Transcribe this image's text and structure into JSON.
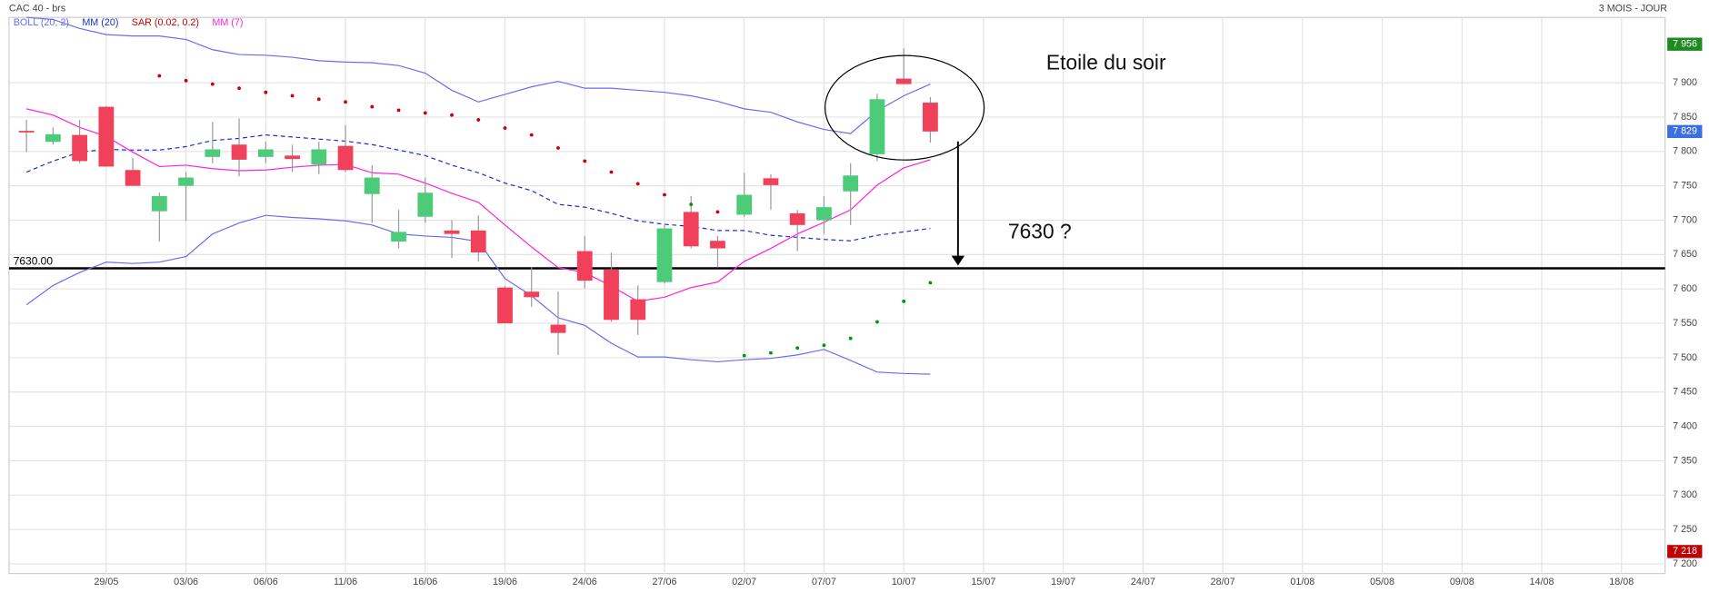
{
  "chart_data": {
    "type": "candlestick",
    "title": "CAC 40 - brs",
    "subtitle": "3 MOIS - JOUR",
    "categories": [
      null,
      null,
      null,
      "29/05",
      null,
      null,
      "03/06",
      null,
      null,
      "06/06",
      null,
      null,
      "11/06",
      null,
      null,
      "16/06",
      null,
      null,
      "19/06",
      null,
      null,
      "24/06",
      null,
      null,
      "27/06",
      null,
      null,
      "02/07",
      null,
      null,
      "07/07",
      null,
      null,
      "10/07",
      null,
      null,
      "15/07",
      null,
      null,
      "19/07",
      null,
      null,
      "24/07",
      null,
      null,
      "28/07",
      null,
      null,
      "01/08",
      null,
      null,
      "05/08",
      null,
      null,
      "09/08",
      null,
      null,
      "14/08",
      null,
      null,
      "18/08",
      null
    ],
    "open": [
      7830,
      7814,
      7824,
      7865,
      7773,
      7713,
      7750,
      7792,
      7810,
      7792,
      7794,
      7781,
      7808,
      7738,
      7669,
      7705,
      7685,
      7685,
      7602,
      7596,
      7548,
      7655,
      7628,
      7585,
      7610,
      7712,
      7670,
      7708,
      7761,
      7710,
      7700,
      7742,
      7796,
      7906,
      7871,
      null,
      null,
      null,
      null,
      null,
      null,
      null,
      null,
      null,
      null,
      null,
      null,
      null,
      null,
      null,
      null,
      null,
      null,
      null,
      null,
      null,
      null,
      null,
      null,
      null,
      null,
      null
    ],
    "high": [
      7846,
      7835,
      7846,
      7866,
      7791,
      7740,
      7770,
      7843,
      7848,
      7814,
      7810,
      7814,
      7838,
      7780,
      7715,
      7762,
      7700,
      7707,
      7604,
      7632,
      7596,
      7677,
      7653,
      7605,
      7693,
      7735,
      7677,
      7769,
      7767,
      7715,
      7735,
      7783,
      7884,
      7950,
      7879,
      null,
      null,
      null,
      null,
      null,
      null,
      null,
      null,
      null,
      null,
      null,
      null,
      null,
      null,
      null,
      null,
      null,
      null,
      null,
      null,
      null,
      null,
      null,
      null,
      null,
      null,
      null
    ],
    "low": [
      7799,
      7810,
      7783,
      7778,
      7750,
      7669,
      7699,
      7783,
      7764,
      7783,
      7770,
      7767,
      7770,
      7696,
      7659,
      7696,
      7645,
      7640,
      7550,
      7574,
      7504,
      7601,
      7552,
      7533,
      7608,
      7659,
      7631,
      7705,
      7715,
      7655,
      7680,
      7693,
      7786,
      7898,
      7813,
      null,
      null,
      null,
      null,
      null,
      null,
      null,
      null,
      null,
      null,
      null,
      null,
      null,
      null,
      null,
      null,
      null,
      null,
      null,
      null,
      null,
      null,
      null,
      null,
      null,
      null,
      null
    ],
    "close": [
      7828,
      7825,
      7786,
      7778,
      7750,
      7735,
      7762,
      7803,
      7788,
      7803,
      7789,
      7803,
      7773,
      7762,
      7683,
      7740,
      7680,
      7653,
      7550,
      7588,
      7536,
      7612,
      7555,
      7555,
      7688,
      7662,
      7659,
      7737,
      7751,
      7693,
      7719,
      7765,
      7876,
      7898,
      7829,
      null,
      null,
      null,
      null,
      null,
      null,
      null,
      null,
      null,
      null,
      null,
      null,
      null,
      null,
      null,
      null,
      null,
      null,
      null,
      null,
      null,
      null,
      null,
      null,
      null,
      null,
      null
    ],
    "up_color": "#4ccc78",
    "down_color": "#f0405a",
    "series": [
      {
        "name": "BOLL (20, 2)",
        "color": "#6a6cf0",
        "upper": [
          7995,
          7992,
          7979,
          7970,
          7968,
          7968,
          7963,
          7948,
          7941,
          7940,
          7937,
          7932,
          7930,
          7929,
          7925,
          7914,
          7889,
          7872,
          7883,
          7894,
          7902,
          7892,
          7892,
          7889,
          7886,
          7881,
          7873,
          7862,
          7857,
          7843,
          7832,
          7826,
          7859,
          7881,
          7898,
          null,
          null,
          null,
          null,
          null,
          null,
          null,
          null,
          null,
          null,
          null,
          null,
          null,
          null,
          null,
          null,
          null,
          null,
          null,
          null,
          null,
          null,
          null,
          null,
          null,
          null,
          null
        ],
        "lower": [
          7577,
          7605,
          7624,
          7639,
          7637,
          7639,
          7647,
          7680,
          7696,
          7707,
          7704,
          7702,
          7699,
          7693,
          7680,
          7677,
          7675,
          7669,
          7615,
          7590,
          7558,
          7547,
          7521,
          7501,
          7501,
          7497,
          7494,
          7497,
          7499,
          7504,
          7512,
          7496,
          7479,
          7477,
          7476,
          null,
          null,
          null,
          null,
          null,
          null,
          null,
          null,
          null,
          null,
          null,
          null,
          null,
          null,
          null,
          null,
          null,
          null,
          null,
          null,
          null,
          null,
          null,
          null,
          null,
          null,
          null
        ]
      },
      {
        "name": "MM (20)",
        "color": "#1a2fc8",
        "dashed": true,
        "values": [
          7770,
          7786,
          7799,
          7803,
          7802,
          7802,
          7807,
          7816,
          7819,
          7824,
          7821,
          7818,
          7815,
          7810,
          7802,
          7794,
          7780,
          7769,
          7754,
          7743,
          7723,
          7719,
          7710,
          7699,
          7694,
          7691,
          7685,
          7685,
          7678,
          7675,
          7672,
          7670,
          7678,
          7683,
          7688,
          null,
          null,
          null,
          null,
          null,
          null,
          null,
          null,
          null,
          null,
          null,
          null,
          null,
          null,
          null,
          null,
          null,
          null,
          null,
          null,
          null,
          null,
          null,
          null,
          null,
          null,
          null
        ]
      },
      {
        "name": "SAR (0.02, 0.2)",
        "color": "#cc0000",
        "color_below": "#00960a",
        "dots": true,
        "values": [
          null,
          null,
          null,
          null,
          null,
          7910,
          7903,
          7898,
          7892,
          7886,
          7881,
          7876,
          7872,
          7865,
          7860,
          7856,
          7853,
          7846,
          7834,
          7824,
          7805,
          7786,
          7770,
          7753,
          7737,
          7723,
          7712,
          7503,
          7507,
          7514,
          7518,
          7528,
          7552,
          7582,
          7609,
          null,
          null,
          null,
          null,
          null,
          null,
          null,
          null,
          null,
          null,
          null,
          null,
          null,
          null,
          null,
          null,
          null,
          null,
          null,
          null,
          null,
          null,
          null,
          null,
          null,
          null,
          null
        ]
      },
      {
        "name": "MM (7)",
        "color": "#ff22dd",
        "values": [
          7862,
          7853,
          7835,
          7822,
          7799,
          7778,
          7780,
          7775,
          7772,
          7773,
          7777,
          7780,
          7781,
          7769,
          7767,
          7754,
          7739,
          7726,
          7693,
          7661,
          7631,
          7624,
          7604,
          7582,
          7588,
          7602,
          7610,
          7640,
          7659,
          7680,
          7697,
          7715,
          7751,
          7776,
          7788,
          null,
          null,
          null,
          null,
          null,
          null,
          null,
          null,
          null,
          null,
          null,
          null,
          null,
          null,
          null,
          null,
          null,
          null,
          null,
          null,
          null,
          null,
          null,
          null,
          null,
          null,
          null
        ]
      }
    ],
    "ylim": [
      7186,
      7995
    ],
    "yticks": [
      {
        "value": 7200,
        "label": "7 200"
      },
      {
        "value": 7250,
        "label": "7 250"
      },
      {
        "value": 7300,
        "label": "7 300"
      },
      {
        "value": 7350,
        "label": "7 350"
      },
      {
        "value": 7400,
        "label": "7 400"
      },
      {
        "value": 7450,
        "label": "7 450"
      },
      {
        "value": 7500,
        "label": "7 500"
      },
      {
        "value": 7550,
        "label": "7 550"
      },
      {
        "value": 7600,
        "label": "7 600"
      },
      {
        "value": 7650,
        "label": "7 650"
      },
      {
        "value": 7700,
        "label": "7 700"
      },
      {
        "value": 7750,
        "label": "7 750"
      },
      {
        "value": 7800,
        "label": "7 800"
      },
      {
        "value": 7850,
        "label": "7 850"
      },
      {
        "value": 7900,
        "label": "7 900"
      }
    ],
    "grid": true,
    "price_tags": [
      {
        "value": 7956,
        "label": "7 956",
        "color": "#1f8a1f"
      },
      {
        "value": 7829,
        "label": "7 829",
        "color": "#3b6fe0"
      },
      {
        "value": 7218,
        "label": "7 218",
        "color": "#c00000"
      }
    ],
    "level": {
      "value": 7630,
      "label": "7630.00"
    },
    "annotations": [
      "Etoile du soir",
      "7630 ?"
    ]
  }
}
